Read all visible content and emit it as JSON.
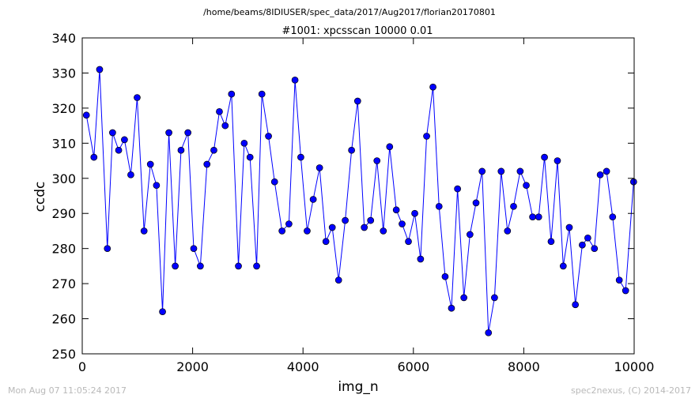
{
  "header": {
    "path": "/home/beams/8IDIUSER/spec_data/2017/Aug2017/florian20170801"
  },
  "footer": {
    "timestamp": "Mon Aug 07 11:05:24 2017",
    "credit": "spec2nexus, (C) 2014-2017"
  },
  "chart_data": {
    "type": "line",
    "title": "#1001: xpcsscan 10000 0.01",
    "xlabel": "img_n",
    "ylabel": "ccdc",
    "xlim": [
      0,
      10000
    ],
    "ylim": [
      250,
      340
    ],
    "xticks": [
      0,
      2000,
      4000,
      6000,
      8000,
      10000
    ],
    "yticks": [
      250,
      260,
      270,
      280,
      290,
      300,
      310,
      320,
      330,
      340
    ],
    "grid": false,
    "legend": "none",
    "series": [
      {
        "color": "#0000ff",
        "marker": "circle",
        "x": [
          75,
          212,
          315,
          455,
          550,
          660,
          765,
          880,
          995,
          1120,
          1235,
          1345,
          1455,
          1570,
          1685,
          1790,
          1915,
          2020,
          2140,
          2260,
          2385,
          2485,
          2590,
          2705,
          2830,
          2935,
          3040,
          3160,
          3255,
          3375,
          3485,
          3620,
          3745,
          3855,
          3960,
          4075,
          4185,
          4300,
          4415,
          4530,
          4645,
          4765,
          4880,
          4990,
          5110,
          5225,
          5340,
          5455,
          5570,
          5690,
          5795,
          5910,
          6025,
          6130,
          6240,
          6355,
          6465,
          6575,
          6690,
          6800,
          6915,
          7025,
          7135,
          7245,
          7360,
          7470,
          7590,
          7705,
          7815,
          7935,
          8045,
          8160,
          8270,
          8375,
          8495,
          8610,
          8715,
          8825,
          8935,
          9060,
          9160,
          9280,
          9385,
          9500,
          9610,
          9730,
          9845,
          9990
        ],
        "y": [
          318,
          306,
          331,
          280,
          313,
          308,
          311,
          301,
          323,
          285,
          304,
          298,
          262,
          313,
          275,
          308,
          313,
          280,
          275,
          304,
          308,
          319,
          315,
          324,
          275,
          310,
          306,
          275,
          324,
          312,
          299,
          285,
          287,
          328,
          306,
          285,
          294,
          303,
          282,
          286,
          271,
          288,
          308,
          322,
          286,
          288,
          305,
          285,
          309,
          291,
          287,
          282,
          290,
          277,
          312,
          326,
          292,
          272,
          263,
          297,
          266,
          284,
          293,
          302,
          256,
          266,
          302,
          285,
          292,
          302,
          298,
          289,
          289,
          306,
          282,
          305,
          275,
          286,
          264,
          281,
          283,
          280,
          301,
          302,
          289,
          271,
          268,
          299
        ]
      }
    ]
  }
}
